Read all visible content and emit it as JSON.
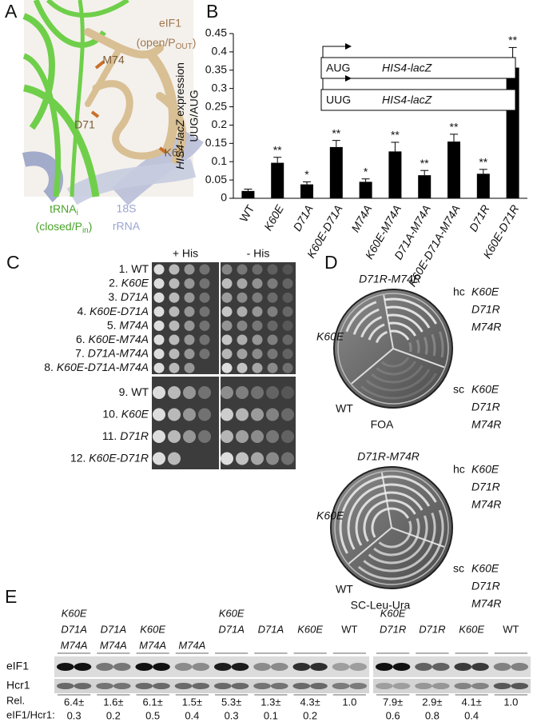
{
  "panel_a": {
    "label": "A",
    "eif1": "eIF1",
    "eif1_state": [
      "(open/P",
      "OUT",
      ")"
    ],
    "residues": [
      "M74",
      "D71",
      "K60"
    ],
    "trna": [
      "tRNA",
      "i"
    ],
    "trna_state": [
      "(closed/P",
      "in",
      ")"
    ],
    "rrna": [
      "18S",
      "rRNA"
    ]
  },
  "chart_data": {
    "type": "bar",
    "label": "B",
    "ylabel": [
      "HIS4-lacZ",
      " expression"
    ],
    "ylabel2": "UUG/AUG",
    "categories": [
      "WT",
      "K60E",
      "D71A",
      "K60E-D71A",
      "M74A",
      "K60E-M74A",
      "D71A-M74A",
      "K60E-D71A-M74A",
      "D71R",
      "K60E-D71R"
    ],
    "values": [
      0.02,
      0.097,
      0.038,
      0.14,
      0.045,
      0.128,
      0.063,
      0.155,
      0.067,
      0.357
    ],
    "errors": [
      0.005,
      0.015,
      0.007,
      0.018,
      0.008,
      0.025,
      0.013,
      0.02,
      0.012,
      0.055
    ],
    "significance": [
      null,
      "**",
      "*",
      "**",
      "*",
      "**",
      "**",
      "**",
      "**",
      "**"
    ],
    "color": "#000000",
    "ylim": [
      0,
      0.45
    ],
    "yticks": [
      0,
      0.05,
      0.1,
      0.15,
      0.2,
      0.25,
      0.3,
      0.35,
      0.4,
      0.45
    ],
    "inset": [
      {
        "codon": "AUG",
        "gene": "HIS4-lacZ"
      },
      {
        "codon": "UUG",
        "gene": "HIS4-lacZ"
      }
    ]
  },
  "panel_c": {
    "label": "C",
    "columns": [
      "+ His",
      "- His"
    ],
    "rows": [
      {
        "num": "1.",
        "name": "WT"
      },
      {
        "num": "2.",
        "name": "K60E"
      },
      {
        "num": "3.",
        "name": "D71A"
      },
      {
        "num": "4.",
        "name": "K60E-D71A"
      },
      {
        "num": "5.",
        "name": "M74A"
      },
      {
        "num": "6.",
        "name": "K60E-M74A"
      },
      {
        "num": "7.",
        "name": "D71A-M74A"
      },
      {
        "num": "8.",
        "name": "K60E-D71A-M74A"
      },
      {
        "num": "9.",
        "name": "WT"
      },
      {
        "num": "10.",
        "name": "K60E"
      },
      {
        "num": "11.",
        "name": "D71R"
      },
      {
        "num": "12.",
        "name": "K60E-D71R"
      }
    ]
  },
  "panel_d": {
    "label": "D",
    "plates": [
      {
        "medium": "FOA",
        "top": "D71R-M74R",
        "left": "K60E",
        "bottom": "WT",
        "hc": [
          "hc",
          "K60E",
          "D71R",
          "M74R"
        ],
        "sc": [
          "sc",
          "K60E",
          "D71R",
          "M74R"
        ]
      },
      {
        "medium": "SC-Leu-Ura",
        "top": "D71R-M74R",
        "left": "K60E",
        "bottom": "WT",
        "hc": [
          "hc",
          "K60E",
          "D71R",
          "M74R"
        ],
        "sc": [
          "sc",
          "K60E",
          "D71R",
          "M74R"
        ]
      }
    ]
  },
  "panel_e": {
    "label": "E",
    "rows": [
      "eIF1",
      "Hcr1"
    ],
    "rel": [
      "Rel.",
      "eIF1/Hcr1:"
    ],
    "left_lanes": [
      {
        "genotype": [
          "K60E",
          "D71A",
          "M74A"
        ],
        "ratio": "6.4±",
        "sd": "0.3"
      },
      {
        "genotype": [
          "D71A",
          "M74A"
        ],
        "ratio": "1.6±",
        "sd": "0.2"
      },
      {
        "genotype": [
          "K60E",
          "M74A"
        ],
        "ratio": "6.1±",
        "sd": "0.5"
      },
      {
        "genotype": [
          "M74A"
        ],
        "ratio": "1.5±",
        "sd": "0.4"
      },
      {
        "genotype": [
          "K60E",
          "D71A"
        ],
        "ratio": "5.3±",
        "sd": "0.3"
      },
      {
        "genotype": [
          "D71A"
        ],
        "ratio": "1.3±",
        "sd": "0.1"
      },
      {
        "genotype": [
          "K60E"
        ],
        "ratio": "4.3±",
        "sd": "0.2"
      },
      {
        "genotype": [
          "WT"
        ],
        "ratio": "1.0"
      }
    ],
    "right_lanes": [
      {
        "genotype": [
          "K60E",
          "D71R"
        ],
        "ratio": "7.9±",
        "sd": "0.6"
      },
      {
        "genotype": [
          "D71R"
        ],
        "ratio": "2.9±",
        "sd": "0.8"
      },
      {
        "genotype": [
          "K60E"
        ],
        "ratio": "4.1±",
        "sd": "0.4"
      },
      {
        "genotype": [
          "WT"
        ],
        "ratio": "1.0"
      }
    ]
  }
}
